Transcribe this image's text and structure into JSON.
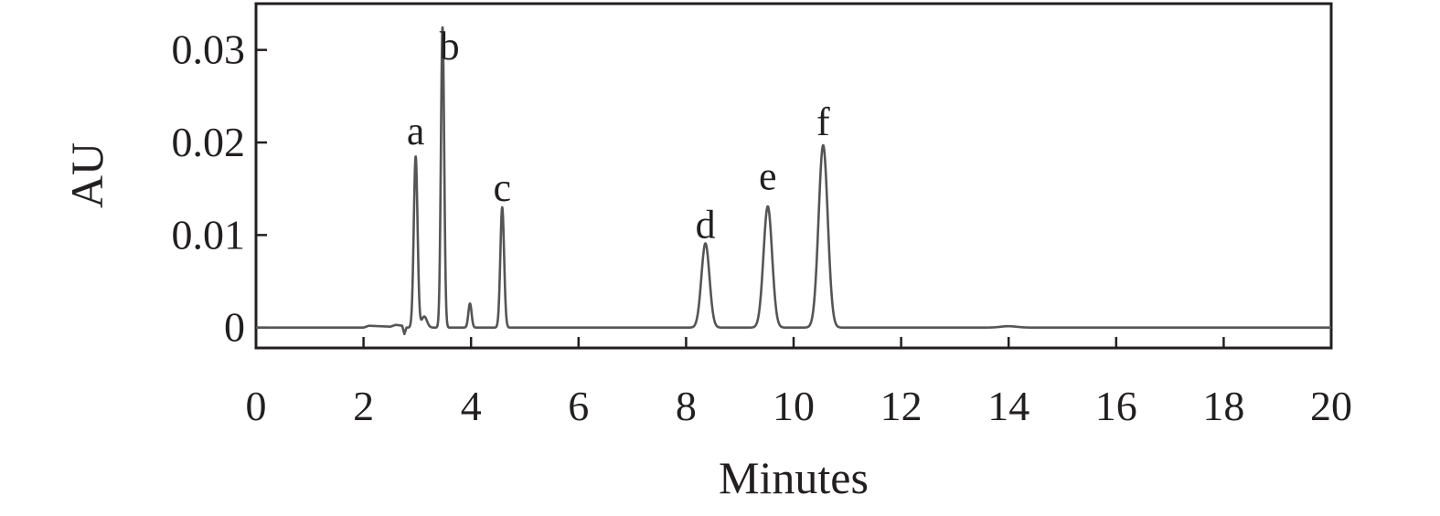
{
  "chart_data": {
    "type": "line",
    "title": "",
    "xlabel": "Minutes",
    "ylabel": "AU",
    "xlim": [
      0,
      20
    ],
    "ylim": [
      -0.0022,
      0.035
    ],
    "xticks": [
      0,
      2,
      4,
      6,
      8,
      10,
      12,
      14,
      16,
      18,
      20
    ],
    "xtick_labels": [
      "0",
      "2",
      "4",
      "6",
      "8",
      "10",
      "12",
      "14",
      "16",
      "18",
      "20"
    ],
    "yticks": [
      0,
      0.01,
      0.02,
      0.03
    ],
    "ytick_labels": [
      "0",
      "0.01",
      "0.02",
      "0.03"
    ],
    "grid": false,
    "legend": "none",
    "line_color": "#555555",
    "series": [
      {
        "baseline_disturbance": [
          [
            0.0,
            0.0
          ],
          [
            2.0,
            0.0
          ],
          [
            2.1,
            0.0002
          ],
          [
            2.5,
            0.0001
          ],
          [
            2.6,
            0.0003
          ],
          [
            2.72,
            0.0002
          ],
          [
            2.76,
            -0.0007
          ],
          [
            2.8,
            0.0
          ],
          [
            2.86,
            0.0
          ],
          [
            3.0,
            0.0
          ]
        ],
        "peaks": [
          {
            "label": "a",
            "time": 2.97,
            "height": 0.0185,
            "width": 0.035
          },
          {
            "label": "",
            "time": 3.13,
            "height": 0.0012,
            "width": 0.05
          },
          {
            "label": "b",
            "time": 3.47,
            "height": 0.0325,
            "width": 0.03
          },
          {
            "label": "",
            "time": 3.98,
            "height": 0.0026,
            "width": 0.03
          },
          {
            "label": "c",
            "time": 4.58,
            "height": 0.013,
            "width": 0.035
          },
          {
            "label": "d",
            "time": 8.36,
            "height": 0.0091,
            "width": 0.075
          },
          {
            "label": "e",
            "time": 9.52,
            "height": 0.0131,
            "width": 0.08
          },
          {
            "label": "f",
            "time": 10.55,
            "height": 0.0197,
            "width": 0.085
          },
          {
            "label": "",
            "time": 14.0,
            "height": 0.00015,
            "width": 0.15
          }
        ]
      }
    ],
    "annotations": [
      {
        "text": "a",
        "time": 2.97,
        "au": 0.0198
      },
      {
        "text": "b",
        "time": 3.6,
        "au": 0.029
      },
      {
        "text": "c",
        "time": 4.58,
        "au": 0.0137
      },
      {
        "text": "d",
        "time": 8.36,
        "au": 0.0097
      },
      {
        "text": "e",
        "time": 9.52,
        "au": 0.0149
      },
      {
        "text": "f",
        "time": 10.55,
        "au": 0.0208
      }
    ]
  }
}
